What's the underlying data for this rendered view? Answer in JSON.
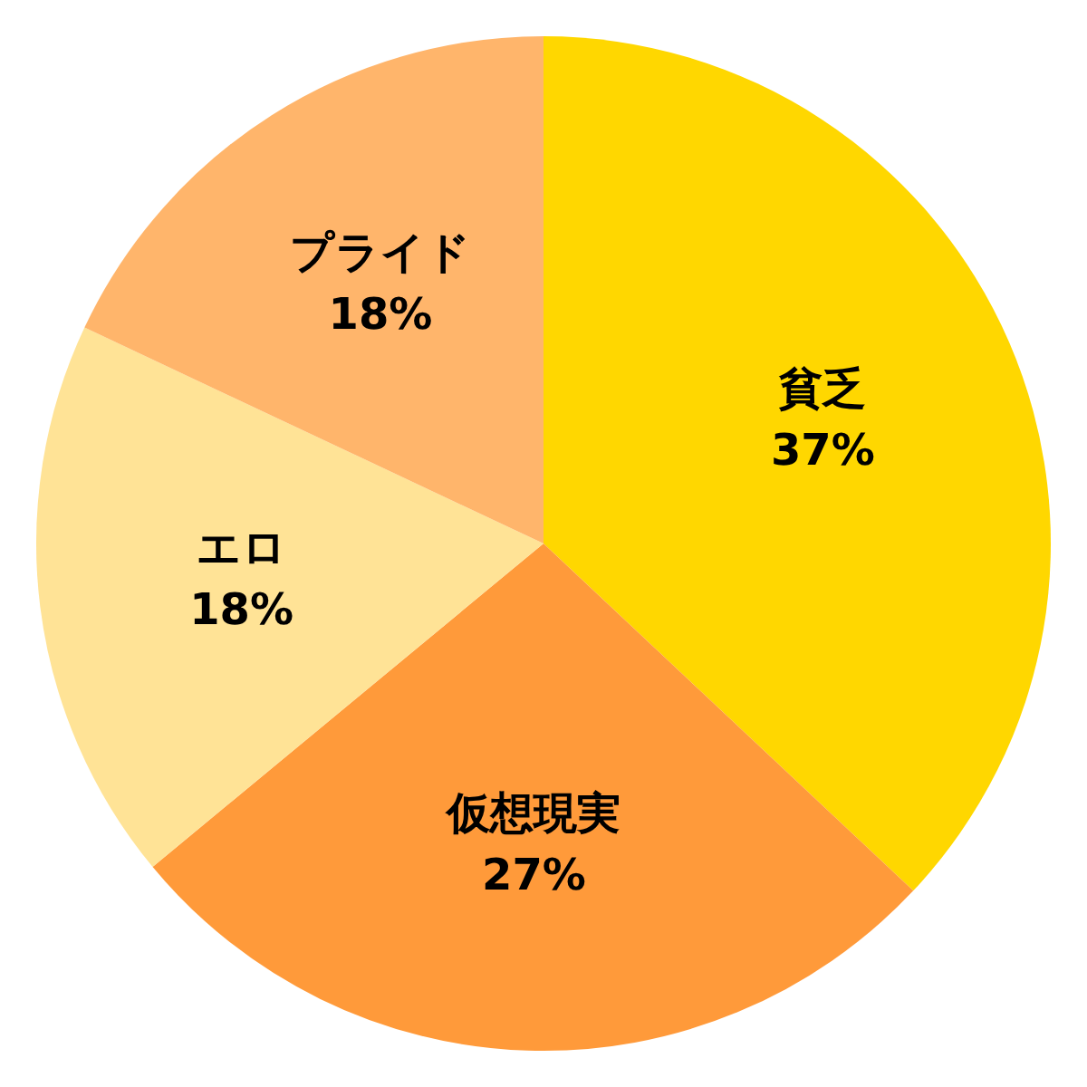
{
  "chart_data": {
    "type": "pie",
    "categories": [
      "貧乏",
      "仮想現実",
      "エロ",
      "プライド"
    ],
    "values": [
      37,
      27,
      18,
      18
    ],
    "colors": [
      "#ffd700",
      "#ff9a3a",
      "#ffe396",
      "#ffb56b"
    ],
    "value_labels": [
      "37%",
      "27%",
      "18%",
      "18%"
    ],
    "legend": false
  }
}
